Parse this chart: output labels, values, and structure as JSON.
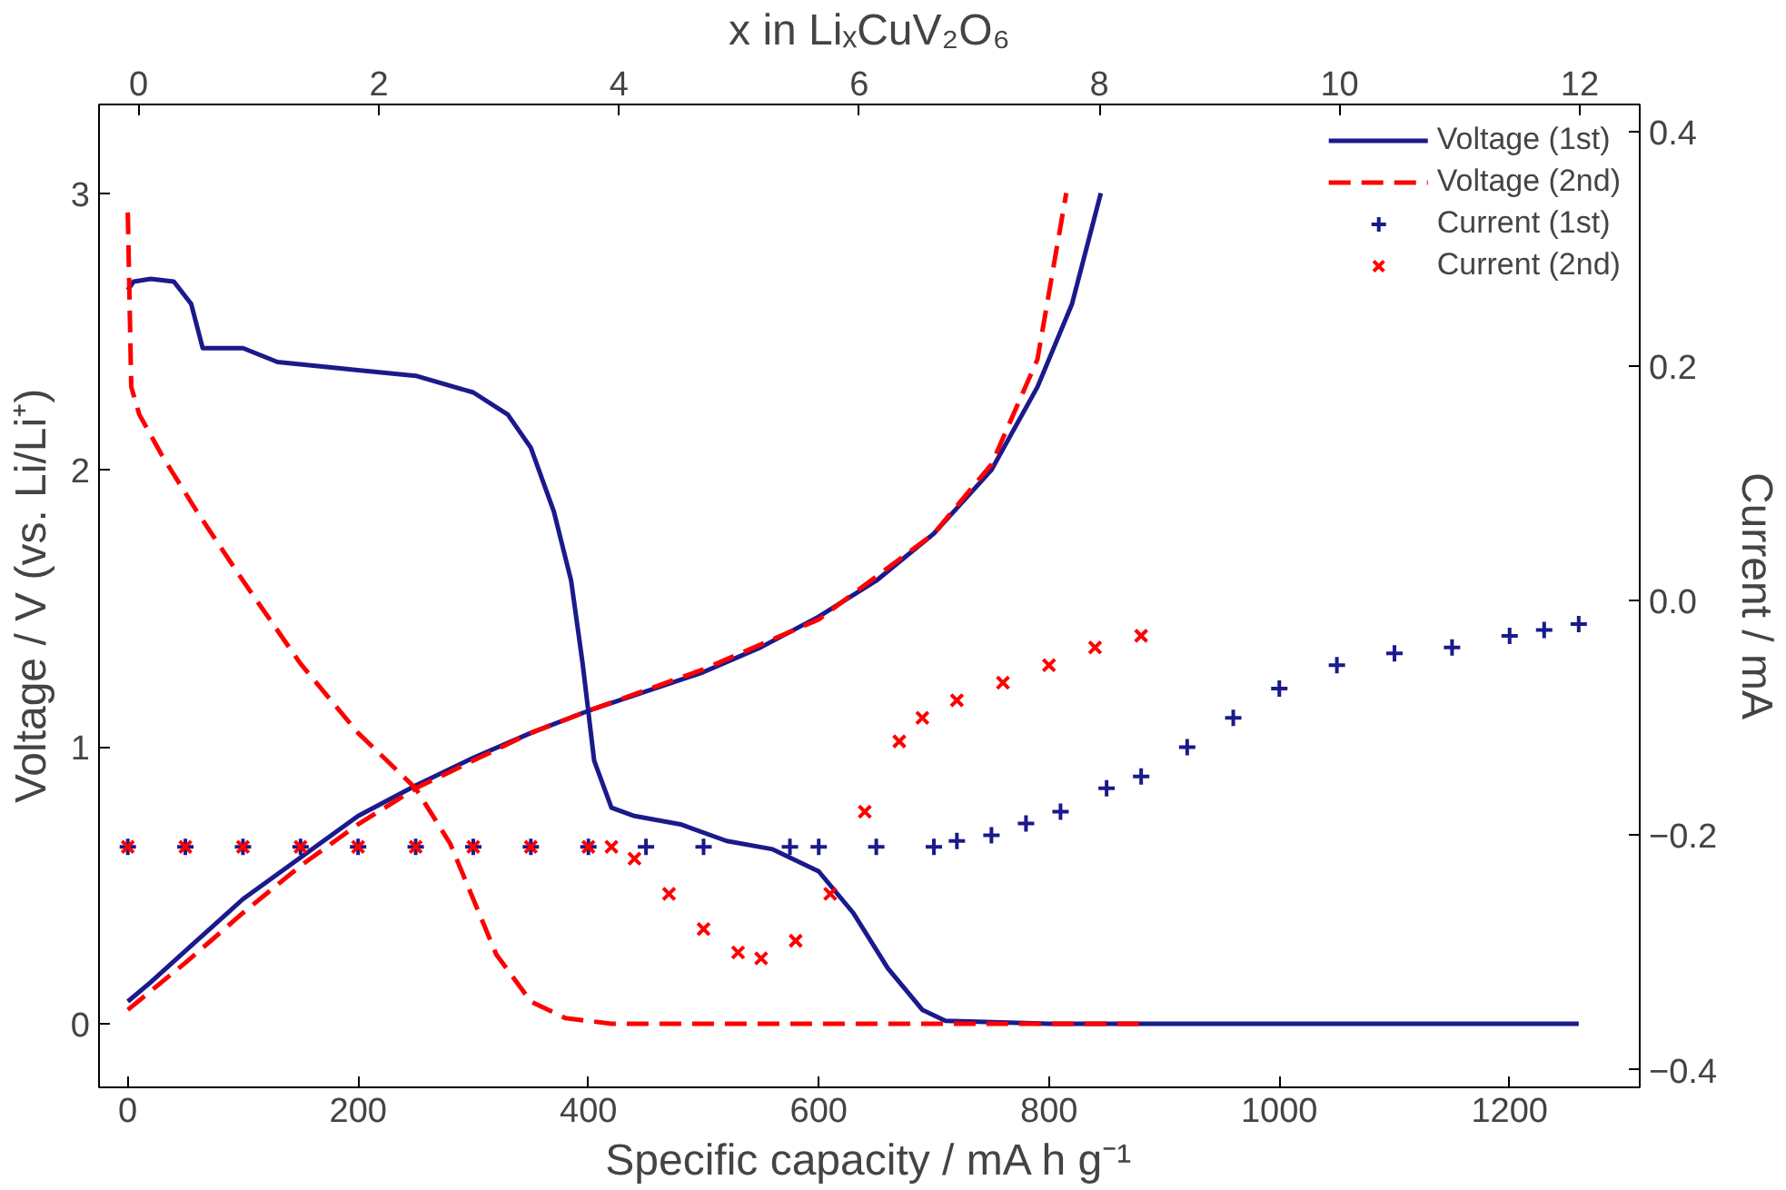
{
  "chart_data": {
    "type": "line",
    "xlabel": "Specific capacity / mA h g⁻¹",
    "ylabel": "Voltage / V (vs. Li/Li⁺)",
    "y2label": "Current / mA",
    "x2label": "x in LiₓCuV₂O₆",
    "xlim": [
      -25,
      1313
    ],
    "xticks": [
      0,
      200,
      400,
      600,
      800,
      1000,
      1200
    ],
    "ylim": [
      -0.23,
      3.32
    ],
    "yticks": [
      0,
      1,
      2,
      3
    ],
    "y2lim": [
      -0.415,
      0.423
    ],
    "y2ticks": [
      -0.4,
      -0.2,
      {
        "value": 0,
        "label": "0.0"
      },
      0.2,
      0.4
    ],
    "x2lim": [
      -0.33,
      12.5
    ],
    "x2ticks": [
      0,
      2,
      4,
      6,
      8,
      10,
      12
    ],
    "legend": "top right",
    "grid": false,
    "series": [
      {
        "name": "Voltage (1st)",
        "line_style": "solid",
        "color": "#1a1a8c",
        "x": [
          0,
          5,
          20,
          40,
          55,
          65,
          80,
          100,
          130,
          200,
          250,
          300,
          330,
          350,
          370,
          385,
          395,
          405,
          420,
          440,
          480,
          520,
          560,
          600,
          630,
          660,
          690,
          710,
          800,
          1260,
          null,
          0,
          20,
          60,
          100,
          150,
          200,
          250,
          300,
          350,
          400,
          450,
          500,
          550,
          600,
          650,
          700,
          750,
          790,
          820,
          845
        ],
        "values": [
          2.65,
          2.68,
          2.69,
          2.68,
          2.6,
          2.44,
          2.44,
          2.44,
          2.39,
          2.36,
          2.34,
          2.28,
          2.2,
          2.08,
          1.85,
          1.6,
          1.3,
          0.95,
          0.78,
          0.75,
          0.72,
          0.66,
          0.63,
          0.55,
          0.4,
          0.2,
          0.05,
          0.01,
          0,
          0,
          null,
          0.08,
          0.15,
          0.3,
          0.45,
          0.6,
          0.75,
          0.86,
          0.96,
          1.05,
          1.13,
          1.2,
          1.27,
          1.36,
          1.47,
          1.6,
          1.77,
          2.0,
          2.3,
          2.6,
          3.0
        ]
      },
      {
        "name": "Voltage (2nd)",
        "line_style": "dashed",
        "color": "#ff0000",
        "x": [
          0,
          3,
          10,
          30,
          60,
          100,
          150,
          200,
          250,
          280,
          300,
          320,
          350,
          380,
          420,
          880,
          null,
          0,
          50,
          100,
          150,
          200,
          250,
          300,
          350,
          400,
          500,
          600,
          700,
          750,
          790,
          815
        ],
        "values": [
          2.93,
          2.3,
          2.2,
          2.05,
          1.85,
          1.6,
          1.3,
          1.05,
          0.85,
          0.65,
          0.45,
          0.25,
          0.08,
          0.02,
          0,
          0,
          null,
          0.05,
          0.22,
          0.4,
          0.57,
          0.72,
          0.85,
          0.95,
          1.05,
          1.13,
          1.28,
          1.46,
          1.77,
          2.02,
          2.4,
          3.0
        ]
      },
      {
        "name": "Current (1st)",
        "type": "scatter",
        "marker": "cross",
        "axis": "y2",
        "color": "#1a1a8c",
        "x": [
          0,
          50,
          100,
          150,
          200,
          250,
          300,
          350,
          400,
          450,
          500,
          575,
          600,
          650,
          700,
          720,
          750,
          780,
          810,
          850,
          880,
          920,
          960,
          1000,
          1050,
          1100,
          1150,
          1200,
          1230,
          1260
        ],
        "values": [
          -0.21,
          -0.21,
          -0.21,
          -0.21,
          -0.21,
          -0.21,
          -0.21,
          -0.21,
          -0.21,
          -0.21,
          -0.21,
          -0.21,
          -0.21,
          -0.21,
          -0.21,
          -0.205,
          -0.2,
          -0.19,
          -0.18,
          -0.16,
          -0.15,
          -0.125,
          -0.1,
          -0.075,
          -0.055,
          -0.045,
          -0.04,
          -0.03,
          -0.025,
          -0.02
        ]
      },
      {
        "name": "Current (2nd)",
        "type": "scatter",
        "marker": "x",
        "axis": "y2",
        "color": "#ff0000",
        "x": [
          0,
          50,
          100,
          150,
          200,
          250,
          300,
          350,
          400,
          420,
          440,
          470,
          500,
          530,
          550,
          580,
          610,
          640,
          670,
          690,
          720,
          760,
          800,
          840,
          880
        ],
        "values": [
          -0.21,
          -0.21,
          -0.21,
          -0.21,
          -0.21,
          -0.21,
          -0.21,
          -0.21,
          -0.21,
          -0.21,
          -0.22,
          -0.25,
          -0.28,
          -0.3,
          -0.305,
          -0.29,
          -0.25,
          -0.18,
          -0.12,
          -0.1,
          -0.085,
          -0.07,
          -0.055,
          -0.04,
          -0.03
        ]
      }
    ]
  }
}
